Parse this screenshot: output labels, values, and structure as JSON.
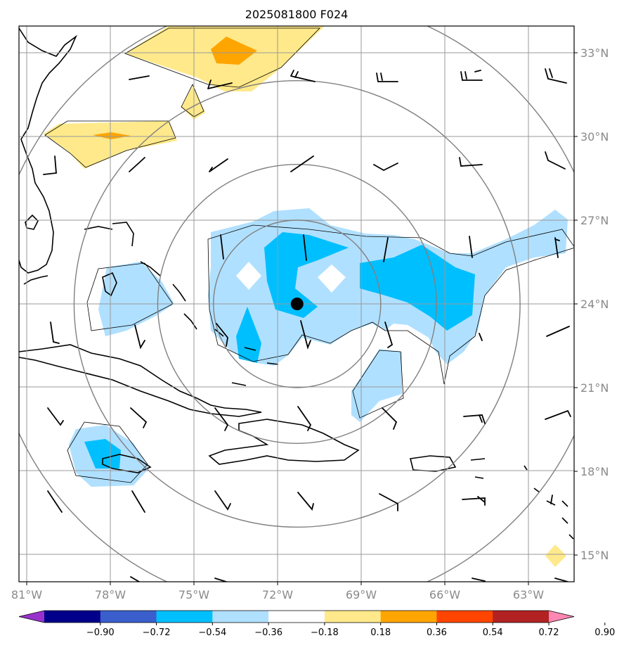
{
  "title": "2025081800 F024",
  "storm_center": {
    "lon": -71.3,
    "lat": 24.0
  },
  "lon_ticks": [
    {
      "value": -81,
      "label": "81°W"
    },
    {
      "value": -78,
      "label": "78°W"
    },
    {
      "value": -75,
      "label": "75°W"
    },
    {
      "value": -72,
      "label": "72°W"
    },
    {
      "value": -69,
      "label": "69°W"
    },
    {
      "value": -66,
      "label": "66°W"
    },
    {
      "value": -63,
      "label": "63°W"
    }
  ],
  "lat_ticks": [
    {
      "value": 33,
      "label": "33°N"
    },
    {
      "value": 30,
      "label": "30°N"
    },
    {
      "value": 27,
      "label": "27°N"
    },
    {
      "value": 24,
      "label": "24°N"
    },
    {
      "value": 21,
      "label": "21°N"
    },
    {
      "value": 18,
      "label": "18°N"
    },
    {
      "value": 15,
      "label": "15°N"
    }
  ],
  "range_rings_deg": [
    3,
    5,
    8,
    11
  ],
  "colorbar": {
    "labels": [
      "−0.90",
      "−0.72",
      "−0.54",
      "−0.36",
      "−0.18",
      "0.18",
      "0.36",
      "0.54",
      "0.72",
      "0.90"
    ],
    "colors": [
      "#9932cc",
      "#00008b",
      "#3a5fcd",
      "#00bfff",
      "#b0e0ff",
      "#ffffff",
      "#ffe98a",
      "#ffa500",
      "#ff4500",
      "#b22222",
      "#ff87b4"
    ]
  }
}
